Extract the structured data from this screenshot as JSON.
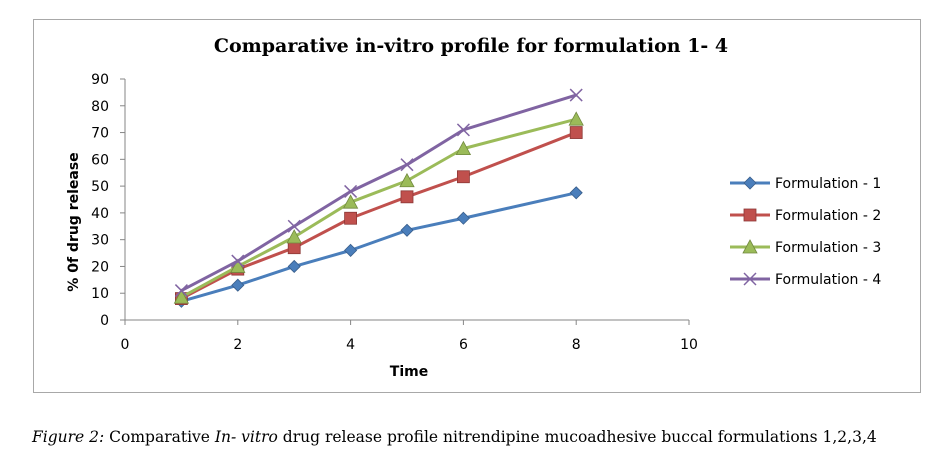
{
  "chart_data": {
    "type": "line",
    "title": "Comparative in-vitro profile for formulation 1- 4",
    "xlabel": "Time",
    "ylabel": "% 0f drug release",
    "xlim": [
      0,
      10
    ],
    "ylim": [
      0,
      90
    ],
    "xticks": [
      0,
      2,
      4,
      6,
      8,
      10
    ],
    "yticks": [
      0,
      10,
      20,
      30,
      40,
      50,
      60,
      70,
      80,
      90
    ],
    "x": [
      1,
      2,
      3,
      4,
      5,
      6,
      8
    ],
    "grid": false,
    "legend_position": "right",
    "series": [
      {
        "name": "Formulation - 1",
        "color": "#4a7ebb",
        "marker": "diamond",
        "values": [
          7,
          13,
          20,
          26,
          33.5,
          38,
          47.5
        ]
      },
      {
        "name": "Formulation - 2",
        "color": "#c0504d",
        "marker": "square",
        "values": [
          8,
          19,
          27,
          38,
          46,
          53.5,
          70
        ]
      },
      {
        "name": "Formulation - 3",
        "color": "#9bbb59",
        "marker": "triangle",
        "values": [
          8.5,
          20,
          31,
          44,
          52,
          64,
          75
        ]
      },
      {
        "name": "Formulation - 4",
        "color": "#8064a2",
        "marker": "x",
        "values": [
          11,
          22,
          35,
          48,
          58,
          71,
          84
        ]
      }
    ]
  },
  "caption": {
    "prefix": "Figure 2:",
    "part1": " Comparative ",
    "italic": "In- vitro",
    "part2": " drug release profile nitrendipine mucoadhesive buccal formulations 1,2,3,4"
  }
}
